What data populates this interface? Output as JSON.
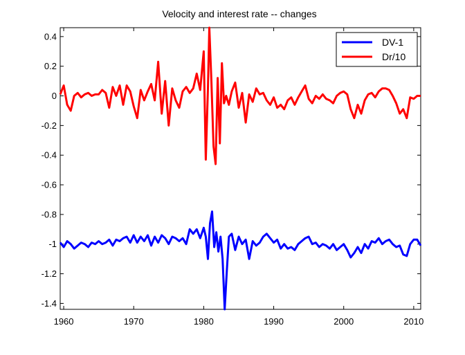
{
  "chart_data": {
    "type": "line",
    "title": "Velocity and interest rate -- changes",
    "xlabel": "",
    "ylabel": "",
    "xlim": [
      1959.5,
      2011
    ],
    "ylim": [
      -1.44,
      0.46
    ],
    "xticks": [
      1960,
      1970,
      1980,
      1990,
      2000,
      2010
    ],
    "yticks": [
      -1.4,
      -1.2,
      -1,
      -0.8,
      -0.6,
      -0.4,
      -0.2,
      0,
      0.2,
      0.4
    ],
    "grid": false,
    "legend_position": "top-right",
    "series": [
      {
        "name": "DV-1",
        "color": "#0000ff",
        "points": [
          [
            1959.5,
            -0.99
          ],
          [
            1960,
            -1.02
          ],
          [
            1960.5,
            -0.98
          ],
          [
            1961,
            -1.0
          ],
          [
            1961.5,
            -1.03
          ],
          [
            1962,
            -1.01
          ],
          [
            1962.5,
            -0.99
          ],
          [
            1963,
            -1.0
          ],
          [
            1963.5,
            -1.02
          ],
          [
            1964,
            -0.99
          ],
          [
            1964.5,
            -1.0
          ],
          [
            1965,
            -0.98
          ],
          [
            1965.5,
            -1.0
          ],
          [
            1966,
            -0.99
          ],
          [
            1966.5,
            -0.97
          ],
          [
            1967,
            -1.01
          ],
          [
            1967.5,
            -0.97
          ],
          [
            1968,
            -0.98
          ],
          [
            1968.5,
            -0.96
          ],
          [
            1969,
            -0.95
          ],
          [
            1969.5,
            -0.99
          ],
          [
            1970,
            -0.94
          ],
          [
            1970.5,
            -0.99
          ],
          [
            1971,
            -0.95
          ],
          [
            1971.5,
            -0.98
          ],
          [
            1972,
            -0.94
          ],
          [
            1972.5,
            -1.01
          ],
          [
            1973,
            -0.95
          ],
          [
            1973.5,
            -0.99
          ],
          [
            1974,
            -0.94
          ],
          [
            1974.5,
            -0.96
          ],
          [
            1975,
            -1.0
          ],
          [
            1975.5,
            -0.95
          ],
          [
            1976,
            -0.96
          ],
          [
            1976.5,
            -0.98
          ],
          [
            1977,
            -0.96
          ],
          [
            1977.5,
            -1.0
          ],
          [
            1978,
            -0.9
          ],
          [
            1978.5,
            -0.93
          ],
          [
            1979,
            -0.9
          ],
          [
            1979.5,
            -0.96
          ],
          [
            1980,
            -0.89
          ],
          [
            1980.3,
            -0.95
          ],
          [
            1980.6,
            -1.1
          ],
          [
            1980.9,
            -0.86
          ],
          [
            1981.2,
            -0.78
          ],
          [
            1981.5,
            -1.02
          ],
          [
            1981.8,
            -0.92
          ],
          [
            1982.1,
            -1.05
          ],
          [
            1982.4,
            -0.95
          ],
          [
            1982.7,
            -1.1
          ],
          [
            1983,
            -1.44
          ],
          [
            1983.3,
            -1.18
          ],
          [
            1983.6,
            -0.95
          ],
          [
            1984,
            -0.93
          ],
          [
            1984.5,
            -1.04
          ],
          [
            1985,
            -0.95
          ],
          [
            1985.5,
            -1.0
          ],
          [
            1986,
            -0.97
          ],
          [
            1986.5,
            -1.1
          ],
          [
            1987,
            -0.98
          ],
          [
            1987.5,
            -1.01
          ],
          [
            1988,
            -0.99
          ],
          [
            1988.5,
            -0.95
          ],
          [
            1989,
            -0.93
          ],
          [
            1989.5,
            -0.96
          ],
          [
            1990,
            -0.99
          ],
          [
            1990.5,
            -0.97
          ],
          [
            1991,
            -1.03
          ],
          [
            1991.5,
            -1.0
          ],
          [
            1992,
            -1.03
          ],
          [
            1992.5,
            -1.02
          ],
          [
            1993,
            -1.04
          ],
          [
            1993.5,
            -1.0
          ],
          [
            1994,
            -0.98
          ],
          [
            1994.5,
            -0.96
          ],
          [
            1995,
            -0.95
          ],
          [
            1995.5,
            -1.0
          ],
          [
            1996,
            -0.99
          ],
          [
            1996.5,
            -1.02
          ],
          [
            1997,
            -1.0
          ],
          [
            1997.5,
            -1.01
          ],
          [
            1998,
            -1.03
          ],
          [
            1998.5,
            -1.0
          ],
          [
            1999,
            -1.04
          ],
          [
            1999.5,
            -1.02
          ],
          [
            2000,
            -1.0
          ],
          [
            2000.5,
            -1.04
          ],
          [
            2001,
            -1.09
          ],
          [
            2001.5,
            -1.06
          ],
          [
            2002,
            -1.02
          ],
          [
            2002.5,
            -1.06
          ],
          [
            2003,
            -1.0
          ],
          [
            2003.5,
            -1.03
          ],
          [
            2004,
            -0.98
          ],
          [
            2004.5,
            -0.99
          ],
          [
            2005,
            -0.96
          ],
          [
            2005.5,
            -1.0
          ],
          [
            2006,
            -0.98
          ],
          [
            2006.5,
            -0.97
          ],
          [
            2007,
            -1.0
          ],
          [
            2007.5,
            -1.02
          ],
          [
            2008,
            -1.01
          ],
          [
            2008.5,
            -1.07
          ],
          [
            2009,
            -1.08
          ],
          [
            2009.5,
            -1.0
          ],
          [
            2010,
            -0.97
          ],
          [
            2010.5,
            -0.97
          ],
          [
            2011,
            -1.01
          ]
        ]
      },
      {
        "name": "Dr/10",
        "color": "#ff0000",
        "points": [
          [
            1959.5,
            0.01
          ],
          [
            1960,
            0.07
          ],
          [
            1960.5,
            -0.06
          ],
          [
            1961,
            -0.1
          ],
          [
            1961.5,
            0.0
          ],
          [
            1962,
            0.02
          ],
          [
            1962.5,
            -0.01
          ],
          [
            1963,
            0.01
          ],
          [
            1963.5,
            0.02
          ],
          [
            1964,
            0.0
          ],
          [
            1964.5,
            0.01
          ],
          [
            1965,
            0.01
          ],
          [
            1965.5,
            0.04
          ],
          [
            1966,
            0.02
          ],
          [
            1966.5,
            -0.08
          ],
          [
            1967,
            0.06
          ],
          [
            1967.5,
            0.0
          ],
          [
            1968,
            0.07
          ],
          [
            1968.5,
            -0.06
          ],
          [
            1969,
            0.07
          ],
          [
            1969.5,
            0.03
          ],
          [
            1970,
            -0.07
          ],
          [
            1970.5,
            -0.15
          ],
          [
            1971,
            0.04
          ],
          [
            1971.5,
            -0.03
          ],
          [
            1972,
            0.03
          ],
          [
            1972.5,
            0.08
          ],
          [
            1973,
            -0.03
          ],
          [
            1973.5,
            0.23
          ],
          [
            1974,
            -0.12
          ],
          [
            1974.5,
            0.1
          ],
          [
            1975,
            -0.2
          ],
          [
            1975.5,
            0.05
          ],
          [
            1976,
            -0.03
          ],
          [
            1976.5,
            -0.08
          ],
          [
            1977,
            0.03
          ],
          [
            1977.5,
            0.06
          ],
          [
            1978,
            0.02
          ],
          [
            1978.5,
            0.05
          ],
          [
            1979,
            0.15
          ],
          [
            1979.5,
            0.04
          ],
          [
            1980,
            0.3
          ],
          [
            1980.3,
            -0.43
          ],
          [
            1980.6,
            0.05
          ],
          [
            1980.8,
            0.46
          ],
          [
            1981.1,
            0.1
          ],
          [
            1981.4,
            -0.34
          ],
          [
            1981.7,
            -0.46
          ],
          [
            1982,
            0.12
          ],
          [
            1982.3,
            -0.32
          ],
          [
            1982.6,
            0.22
          ],
          [
            1982.9,
            -0.05
          ],
          [
            1983.2,
            0.0
          ],
          [
            1983.6,
            -0.06
          ],
          [
            1984,
            0.03
          ],
          [
            1984.5,
            0.09
          ],
          [
            1985,
            -0.08
          ],
          [
            1985.5,
            0.02
          ],
          [
            1986,
            -0.18
          ],
          [
            1986.5,
            0.01
          ],
          [
            1987,
            -0.04
          ],
          [
            1987.5,
            0.05
          ],
          [
            1988,
            0.01
          ],
          [
            1988.5,
            0.02
          ],
          [
            1989,
            -0.03
          ],
          [
            1989.5,
            -0.06
          ],
          [
            1990,
            -0.01
          ],
          [
            1990.5,
            -0.08
          ],
          [
            1991,
            -0.06
          ],
          [
            1991.5,
            -0.09
          ],
          [
            1992,
            -0.03
          ],
          [
            1992.5,
            -0.01
          ],
          [
            1993,
            -0.06
          ],
          [
            1993.5,
            -0.01
          ],
          [
            1994,
            0.03
          ],
          [
            1994.5,
            0.07
          ],
          [
            1995,
            -0.02
          ],
          [
            1995.5,
            -0.05
          ],
          [
            1996,
            0.0
          ],
          [
            1996.5,
            -0.02
          ],
          [
            1997,
            0.01
          ],
          [
            1997.5,
            -0.02
          ],
          [
            1998,
            -0.03
          ],
          [
            1998.5,
            -0.05
          ],
          [
            1999,
            0.0
          ],
          [
            1999.5,
            0.02
          ],
          [
            2000,
            0.03
          ],
          [
            2000.5,
            0.01
          ],
          [
            2001,
            -0.09
          ],
          [
            2001.5,
            -0.15
          ],
          [
            2002,
            -0.06
          ],
          [
            2002.5,
            -0.12
          ],
          [
            2003,
            -0.03
          ],
          [
            2003.5,
            0.01
          ],
          [
            2004,
            0.02
          ],
          [
            2004.5,
            -0.01
          ],
          [
            2005,
            0.03
          ],
          [
            2005.5,
            0.05
          ],
          [
            2006,
            0.05
          ],
          [
            2006.5,
            0.04
          ],
          [
            2007,
            0.0
          ],
          [
            2007.5,
            -0.05
          ],
          [
            2008,
            -0.12
          ],
          [
            2008.5,
            -0.09
          ],
          [
            2009,
            -0.15
          ],
          [
            2009.5,
            -0.01
          ],
          [
            2010,
            -0.02
          ],
          [
            2010.5,
            0.0
          ],
          [
            2011,
            0.0
          ]
        ]
      }
    ]
  }
}
